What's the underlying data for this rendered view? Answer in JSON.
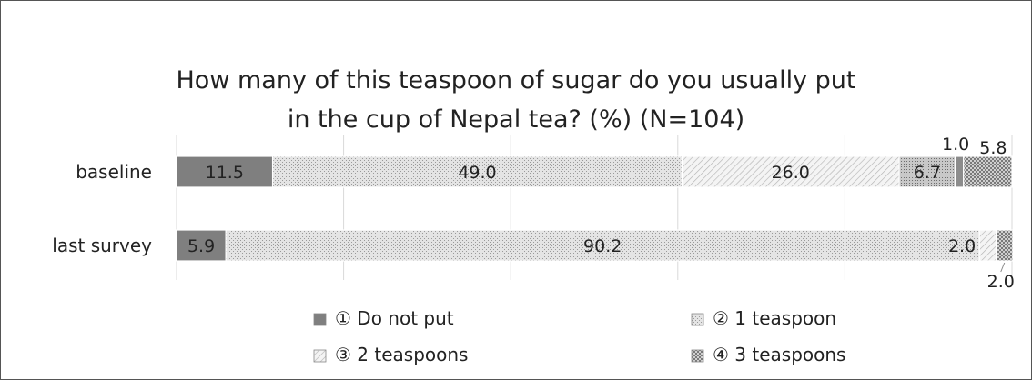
{
  "chart_data": {
    "type": "bar",
    "orientation": "horizontal",
    "stacked": true,
    "title": "How many of this teaspoon of sugar do you usually put in the cup of Nepal tea?  (%)  (N=104)",
    "title_lines": [
      "How many of this teaspoon of sugar do you usually put",
      "in the cup of Nepal tea?  (%)  (N=104)"
    ],
    "categories": [
      "baseline",
      "last survey"
    ],
    "xlim": [
      0,
      100
    ],
    "grid": true,
    "legend_position": "bottom",
    "series": [
      {
        "name": "① Do not put",
        "values": [
          11.5,
          5.9
        ],
        "labels": [
          "11.5",
          "5.9"
        ],
        "color": "#7f7f7f",
        "pattern": "solid"
      },
      {
        "name": "② 1 teaspoon",
        "values": [
          49.0,
          90.2
        ],
        "labels": [
          "49.0",
          "90.2"
        ],
        "color": "#d9d9d9",
        "pattern": "dots"
      },
      {
        "name": "③ 2 teaspoons",
        "values": [
          26.0,
          2.0
        ],
        "labels": [
          "26.0",
          "2.0"
        ],
        "color": "#f2f2f2",
        "pattern": "diagonal"
      },
      {
        "name": "",
        "values": [
          6.7,
          0
        ],
        "labels": [
          "6.7",
          ""
        ],
        "color": "#bfbfbf",
        "pattern": "dots-dense"
      },
      {
        "name": "",
        "values": [
          1.0,
          0
        ],
        "labels": [
          "1.0",
          ""
        ],
        "color": "#8c8c8c",
        "pattern": "solid"
      },
      {
        "name": "④ 3 teaspoons",
        "values": [
          5.8,
          2.0
        ],
        "labels": [
          "5.8",
          "2.0"
        ],
        "color": "#b0b0b0",
        "pattern": "checker"
      }
    ]
  }
}
